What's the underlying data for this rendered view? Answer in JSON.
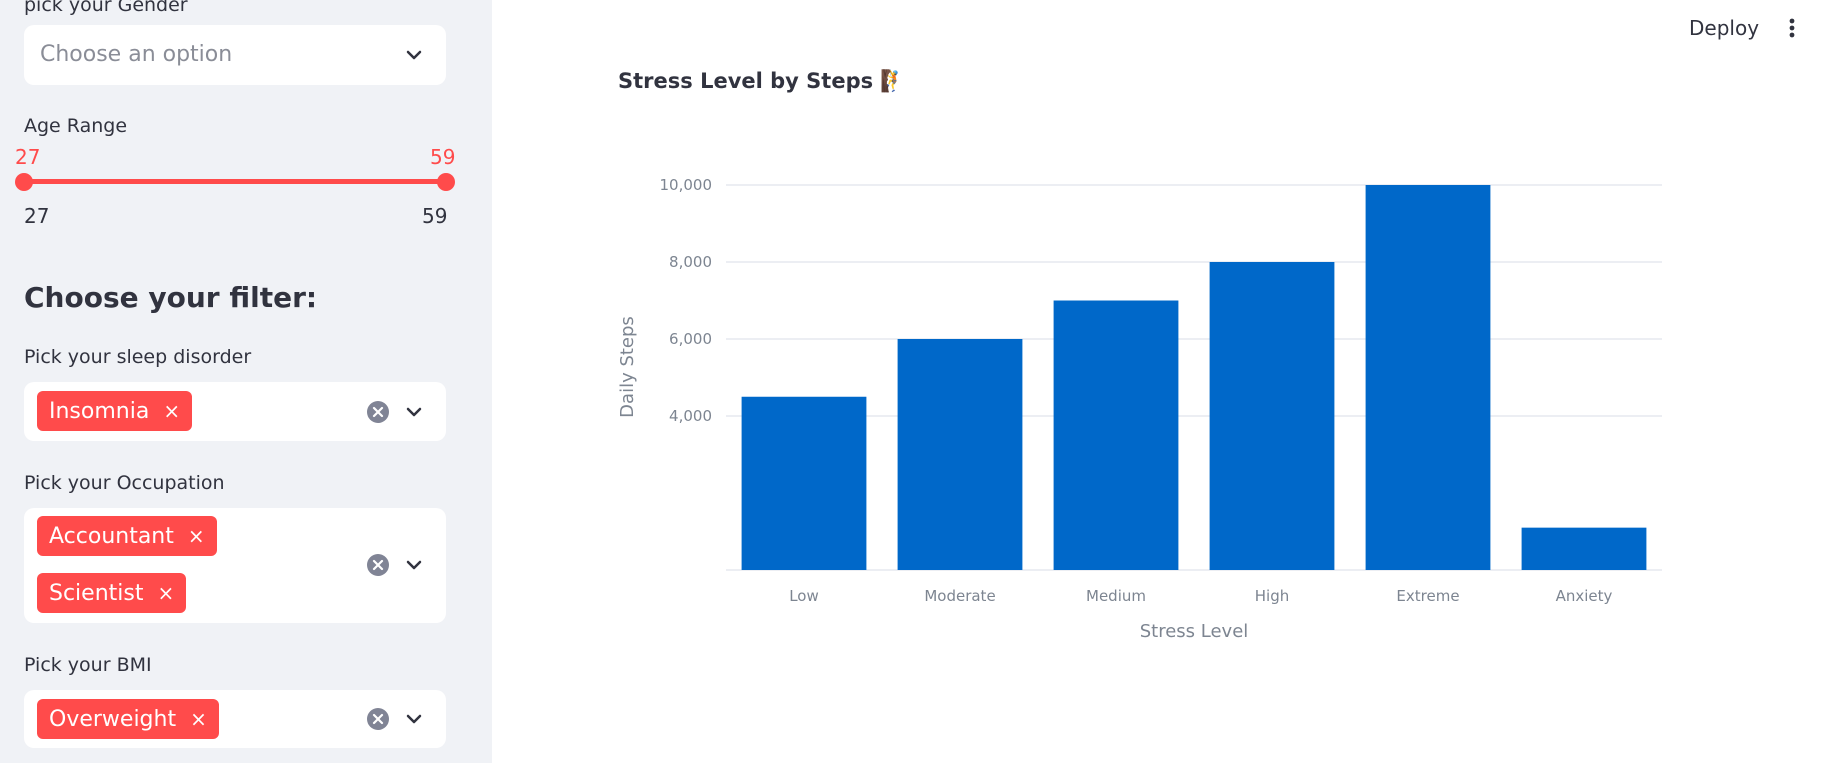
{
  "sidebar": {
    "gender_label": "pick your Gender",
    "gender_placeholder": "Choose an option",
    "age_label": "Age Range",
    "age_value_min": "27",
    "age_value_max": "59",
    "age_range_min": "27",
    "age_range_max": "59",
    "filter_heading": "Choose your filter:",
    "sleep_label": "Pick your sleep disorder",
    "sleep_tags": [
      "Insomnia"
    ],
    "occupation_label": "Pick your Occupation",
    "occupation_tags": [
      "Accountant",
      "Scientist"
    ],
    "bmi_label": "Pick your BMI",
    "bmi_tags": [
      "Overweight"
    ],
    "tag_remove_symbol": "×"
  },
  "header": {
    "deploy_label": "Deploy"
  },
  "chart_title": "Stress Level by Steps 🧗",
  "colors": {
    "accent": "#ff4b4b",
    "bar": "#0068c9",
    "sidebar_bg": "#f0f2f6"
  },
  "chart_data": {
    "type": "bar",
    "title": "Stress Level by Steps",
    "categories": [
      "Low",
      "Moderate",
      "Medium",
      "High",
      "Extreme",
      "Anxiety"
    ],
    "values": [
      4500,
      6000,
      7000,
      8000,
      10000,
      1100
    ],
    "xlabel": "Stress Level",
    "ylabel": "Daily Steps",
    "yticks": [
      4000,
      6000,
      8000,
      10000
    ],
    "ytick_labels": [
      "4,000",
      "6,000",
      "8,000",
      "10,000"
    ],
    "grid": true,
    "legend": "none"
  }
}
